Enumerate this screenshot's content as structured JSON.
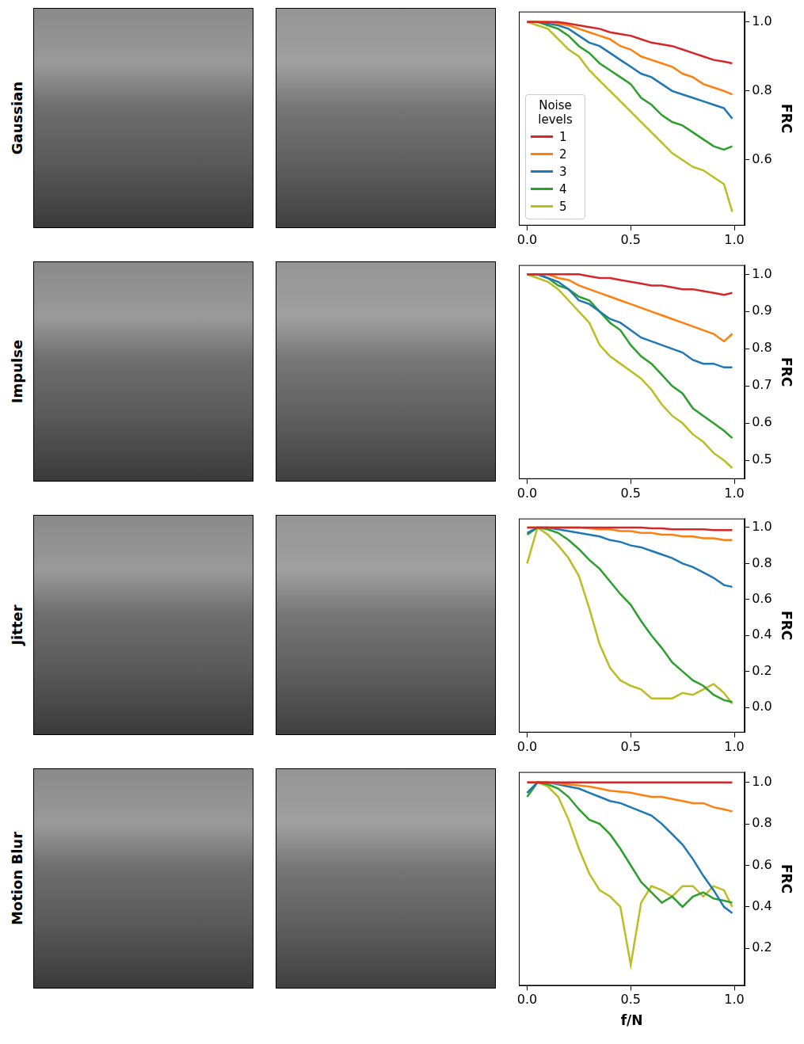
{
  "chart_data": [
    {
      "type": "line",
      "title": "Gaussian",
      "y_label": "FRC",
      "x": [
        0,
        0.05,
        0.1,
        0.15,
        0.2,
        0.25,
        0.3,
        0.35,
        0.4,
        0.45,
        0.5,
        0.55,
        0.6,
        0.65,
        0.7,
        0.75,
        0.8,
        0.85,
        0.9,
        0.95,
        0.99
      ],
      "xlim": [
        -0.04,
        1.05
      ],
      "xticks": [
        {
          "value": 0,
          "label": "0.0"
        },
        0.5,
        {
          "value": 1,
          "label": "1.0"
        }
      ],
      "ylim": [
        0.41,
        1.03
      ],
      "yticks": [
        0.6,
        0.8,
        {
          "value": 1,
          "label": "1.0"
        }
      ],
      "grid": false,
      "legend": "lower left",
      "legend_title": "Noise levels",
      "series": [
        {
          "name": "1",
          "color": "#d62728",
          "values": [
            1.0,
            1.0,
            1.0,
            1.0,
            0.995,
            0.99,
            0.985,
            0.98,
            0.97,
            0.965,
            0.96,
            0.95,
            0.94,
            0.935,
            0.93,
            0.92,
            0.91,
            0.9,
            0.89,
            0.885,
            0.88
          ]
        },
        {
          "name": "2",
          "color": "#ff7f0e",
          "values": [
            1.0,
            1.0,
            1.0,
            0.995,
            0.99,
            0.98,
            0.97,
            0.96,
            0.95,
            0.93,
            0.92,
            0.9,
            0.89,
            0.88,
            0.87,
            0.85,
            0.84,
            0.82,
            0.81,
            0.8,
            0.79
          ]
        },
        {
          "name": "3",
          "color": "#1f77b4",
          "values": [
            1.0,
            1.0,
            0.995,
            0.99,
            0.98,
            0.96,
            0.94,
            0.93,
            0.91,
            0.89,
            0.87,
            0.85,
            0.84,
            0.82,
            0.8,
            0.79,
            0.78,
            0.77,
            0.76,
            0.75,
            0.72
          ]
        },
        {
          "name": "4",
          "color": "#2ca02c",
          "values": [
            1.0,
            1.0,
            0.99,
            0.98,
            0.96,
            0.93,
            0.91,
            0.88,
            0.86,
            0.84,
            0.82,
            0.78,
            0.76,
            0.73,
            0.71,
            0.7,
            0.68,
            0.66,
            0.64,
            0.63,
            0.64
          ]
        },
        {
          "name": "5",
          "color": "#bcbd22",
          "values": [
            1.0,
            0.99,
            0.98,
            0.95,
            0.92,
            0.9,
            0.86,
            0.83,
            0.8,
            0.77,
            0.74,
            0.71,
            0.68,
            0.65,
            0.62,
            0.6,
            0.58,
            0.57,
            0.55,
            0.53,
            0.45
          ]
        }
      ]
    },
    {
      "type": "line",
      "title": "Impulse",
      "y_label": "FRC",
      "x": [
        0,
        0.05,
        0.1,
        0.15,
        0.2,
        0.25,
        0.3,
        0.35,
        0.4,
        0.45,
        0.5,
        0.55,
        0.6,
        0.65,
        0.7,
        0.75,
        0.8,
        0.85,
        0.9,
        0.95,
        0.99
      ],
      "xlim": [
        -0.04,
        1.05
      ],
      "xticks": [
        {
          "value": 0,
          "label": "0.0"
        },
        0.5,
        {
          "value": 1,
          "label": "1.0"
        }
      ],
      "ylim": [
        0.45,
        1.025
      ],
      "yticks": [
        0.5,
        0.6,
        0.7,
        0.8,
        0.9,
        {
          "value": 1,
          "label": "1.0"
        }
      ],
      "grid": false,
      "legend": false,
      "series": [
        {
          "name": "1",
          "color": "#d62728",
          "values": [
            1.0,
            1.0,
            1.0,
            1.0,
            1.0,
            1.0,
            0.995,
            0.99,
            0.99,
            0.985,
            0.98,
            0.975,
            0.97,
            0.97,
            0.965,
            0.96,
            0.96,
            0.955,
            0.95,
            0.945,
            0.95
          ]
        },
        {
          "name": "2",
          "color": "#ff7f0e",
          "values": [
            1.0,
            1.0,
            1.0,
            0.99,
            0.985,
            0.97,
            0.96,
            0.95,
            0.94,
            0.93,
            0.92,
            0.91,
            0.9,
            0.89,
            0.88,
            0.87,
            0.86,
            0.85,
            0.84,
            0.82,
            0.84
          ]
        },
        {
          "name": "3",
          "color": "#1f77b4",
          "values": [
            1.0,
            1.0,
            0.99,
            0.98,
            0.96,
            0.93,
            0.92,
            0.9,
            0.88,
            0.87,
            0.85,
            0.83,
            0.82,
            0.81,
            0.8,
            0.79,
            0.77,
            0.76,
            0.76,
            0.75,
            0.75
          ]
        },
        {
          "name": "4",
          "color": "#2ca02c",
          "values": [
            1.0,
            1.0,
            0.99,
            0.97,
            0.96,
            0.94,
            0.93,
            0.9,
            0.87,
            0.85,
            0.81,
            0.78,
            0.76,
            0.73,
            0.7,
            0.68,
            0.64,
            0.62,
            0.6,
            0.58,
            0.56
          ]
        },
        {
          "name": "5",
          "color": "#bcbd22",
          "values": [
            1.0,
            0.99,
            0.98,
            0.96,
            0.93,
            0.9,
            0.87,
            0.81,
            0.78,
            0.76,
            0.74,
            0.72,
            0.69,
            0.65,
            0.62,
            0.6,
            0.57,
            0.55,
            0.52,
            0.5,
            0.48
          ]
        }
      ]
    },
    {
      "type": "line",
      "title": "Jitter",
      "y_label": "FRC",
      "x": [
        0,
        0.05,
        0.1,
        0.15,
        0.2,
        0.25,
        0.3,
        0.35,
        0.4,
        0.45,
        0.5,
        0.55,
        0.6,
        0.65,
        0.7,
        0.75,
        0.8,
        0.85,
        0.9,
        0.95,
        0.99
      ],
      "xlim": [
        -0.04,
        1.05
      ],
      "xticks": [
        {
          "value": 0,
          "label": "0.0"
        },
        0.5,
        {
          "value": 1,
          "label": "1.0"
        }
      ],
      "ylim": [
        -0.14,
        1.05
      ],
      "yticks": [
        {
          "value": 0,
          "label": "0.0"
        },
        0.2,
        0.4,
        0.6,
        0.8,
        {
          "value": 1,
          "label": "1.0"
        }
      ],
      "grid": false,
      "legend": false,
      "series": [
        {
          "name": "1",
          "color": "#d62728",
          "values": [
            1.0,
            1.0,
            1.0,
            1.0,
            1.0,
            1.0,
            1.0,
            1.0,
            1.0,
            1.0,
            1.0,
            1.0,
            0.995,
            0.995,
            0.99,
            0.99,
            0.99,
            0.99,
            0.985,
            0.985,
            0.985
          ]
        },
        {
          "name": "2",
          "color": "#ff7f0e",
          "values": [
            1.0,
            1.0,
            1.0,
            1.0,
            1.0,
            1.0,
            0.995,
            0.99,
            0.99,
            0.98,
            0.98,
            0.97,
            0.97,
            0.96,
            0.96,
            0.95,
            0.95,
            0.94,
            0.94,
            0.93,
            0.93
          ]
        },
        {
          "name": "3",
          "color": "#1f77b4",
          "values": [
            0.97,
            1.0,
            1.0,
            0.99,
            0.98,
            0.97,
            0.96,
            0.95,
            0.93,
            0.92,
            0.9,
            0.89,
            0.87,
            0.85,
            0.83,
            0.8,
            0.78,
            0.75,
            0.72,
            0.68,
            0.67
          ]
        },
        {
          "name": "4",
          "color": "#2ca02c",
          "values": [
            0.96,
            1.0,
            0.99,
            0.97,
            0.93,
            0.88,
            0.82,
            0.77,
            0.7,
            0.63,
            0.57,
            0.48,
            0.4,
            0.33,
            0.25,
            0.2,
            0.15,
            0.12,
            0.07,
            0.04,
            0.03
          ]
        },
        {
          "name": "5",
          "color": "#bcbd22",
          "values": [
            0.8,
            1.0,
            0.96,
            0.9,
            0.83,
            0.73,
            0.55,
            0.35,
            0.22,
            0.15,
            0.12,
            0.1,
            0.05,
            0.05,
            0.05,
            0.08,
            0.07,
            0.1,
            0.13,
            0.08,
            0.02
          ]
        }
      ]
    },
    {
      "type": "line",
      "title": "Motion Blur",
      "y_label": "FRC",
      "x_label": "f/N",
      "x": [
        0,
        0.05,
        0.1,
        0.15,
        0.2,
        0.25,
        0.3,
        0.35,
        0.4,
        0.45,
        0.5,
        0.55,
        0.6,
        0.65,
        0.7,
        0.75,
        0.8,
        0.85,
        0.9,
        0.95,
        0.99
      ],
      "xlim": [
        -0.04,
        1.05
      ],
      "xticks": [
        {
          "value": 0,
          "label": "0.0"
        },
        0.5,
        {
          "value": 1,
          "label": "1.0"
        }
      ],
      "ylim": [
        0.02,
        1.05
      ],
      "yticks": [
        0.2,
        0.4,
        0.6,
        0.8,
        {
          "value": 1,
          "label": "1.0"
        }
      ],
      "grid": false,
      "legend": false,
      "series": [
        {
          "name": "1",
          "color": "#d62728",
          "values": [
            1.0,
            1.0,
            1.0,
            1.0,
            1.0,
            1.0,
            1.0,
            1.0,
            1.0,
            1.0,
            1.0,
            1.0,
            1.0,
            1.0,
            1.0,
            1.0,
            1.0,
            1.0,
            1.0,
            1.0,
            1.0
          ]
        },
        {
          "name": "2",
          "color": "#ff7f0e",
          "values": [
            1.0,
            1.0,
            1.0,
            0.995,
            0.99,
            0.985,
            0.98,
            0.97,
            0.96,
            0.955,
            0.95,
            0.94,
            0.93,
            0.93,
            0.92,
            0.91,
            0.9,
            0.9,
            0.88,
            0.87,
            0.86
          ]
        },
        {
          "name": "3",
          "color": "#1f77b4",
          "values": [
            0.95,
            1.0,
            1.0,
            0.99,
            0.98,
            0.97,
            0.95,
            0.93,
            0.91,
            0.9,
            0.88,
            0.86,
            0.84,
            0.8,
            0.75,
            0.7,
            0.63,
            0.55,
            0.48,
            0.4,
            0.37
          ]
        },
        {
          "name": "4",
          "color": "#2ca02c",
          "values": [
            0.93,
            1.0,
            0.99,
            0.97,
            0.93,
            0.87,
            0.82,
            0.8,
            0.75,
            0.68,
            0.6,
            0.52,
            0.47,
            0.42,
            0.45,
            0.4,
            0.45,
            0.47,
            0.44,
            0.43,
            0.42
          ]
        },
        {
          "name": "5",
          "color": "#bcbd22",
          "values": [
            0.95,
            1.0,
            0.98,
            0.93,
            0.82,
            0.68,
            0.56,
            0.48,
            0.45,
            0.4,
            0.12,
            0.42,
            0.5,
            0.48,
            0.45,
            0.5,
            0.5,
            0.45,
            0.5,
            0.48,
            0.4
          ]
        }
      ]
    }
  ]
}
